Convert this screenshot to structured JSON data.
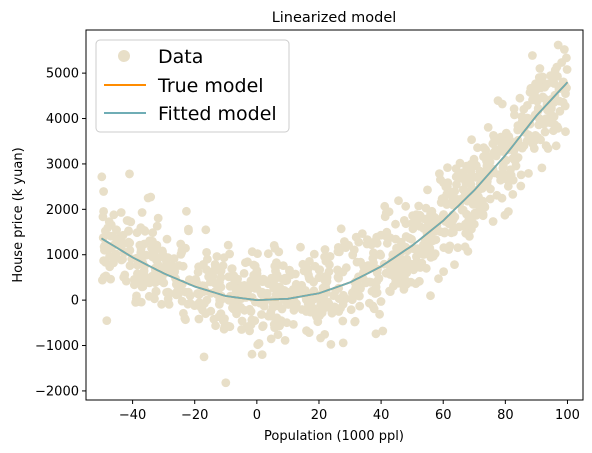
{
  "chart_data": {
    "type": "scatter",
    "title": "Linearized model",
    "xlabel": "Population (1000 ppl)",
    "ylabel": "House price (k yuan)",
    "xlim": [
      -55,
      105
    ],
    "ylim": [
      -2200,
      5950
    ],
    "x_ticks": [
      -40,
      -20,
      0,
      20,
      40,
      60,
      80,
      100
    ],
    "y_ticks": [
      -2000,
      -1000,
      0,
      1000,
      2000,
      3000,
      4000,
      5000
    ],
    "x_tick_labels": [
      "−40",
      "−20",
      "0",
      "20",
      "40",
      "60",
      "80",
      "100"
    ],
    "y_tick_labels": [
      "−2000",
      "−1000",
      "0",
      "1000",
      "2000",
      "3000",
      "4000",
      "5000"
    ],
    "grid": false,
    "legend_position": "top-left",
    "series": [
      {
        "name": "Data",
        "kind": "scatter",
        "color": "#e8dfc8",
        "x_range": [
          -50,
          100
        ],
        "count": 1000,
        "noise_std": 500,
        "sample_points": [
          {
            "x": -41,
            "y": 2780
          },
          {
            "x": -35,
            "y": 2250
          },
          {
            "x": -10,
            "y": -1820
          },
          {
            "x": -17,
            "y": -1250
          },
          {
            "x": 97,
            "y": 5620
          },
          {
            "x": 99,
            "y": 5520
          }
        ]
      },
      {
        "name": "True model",
        "kind": "line",
        "color": "#ff8c00",
        "x": [
          -50,
          -40,
          -30,
          -20,
          -10,
          0,
          10,
          20,
          30,
          40,
          50,
          60,
          70,
          80,
          90,
          100
        ],
        "y": [
          1360,
          940,
          590,
          300,
          90,
          0,
          30,
          150,
          390,
          740,
          1200,
          1750,
          2420,
          3190,
          4060,
          4800
        ]
      },
      {
        "name": "Fitted model",
        "kind": "line",
        "color": "#6fadb5",
        "x": [
          -50,
          -40,
          -30,
          -20,
          -10,
          0,
          10,
          20,
          30,
          40,
          50,
          60,
          70,
          80,
          90,
          100
        ],
        "y": [
          1360,
          940,
          590,
          300,
          90,
          0,
          30,
          150,
          390,
          740,
          1200,
          1750,
          2420,
          3190,
          4060,
          4800
        ]
      }
    ]
  }
}
